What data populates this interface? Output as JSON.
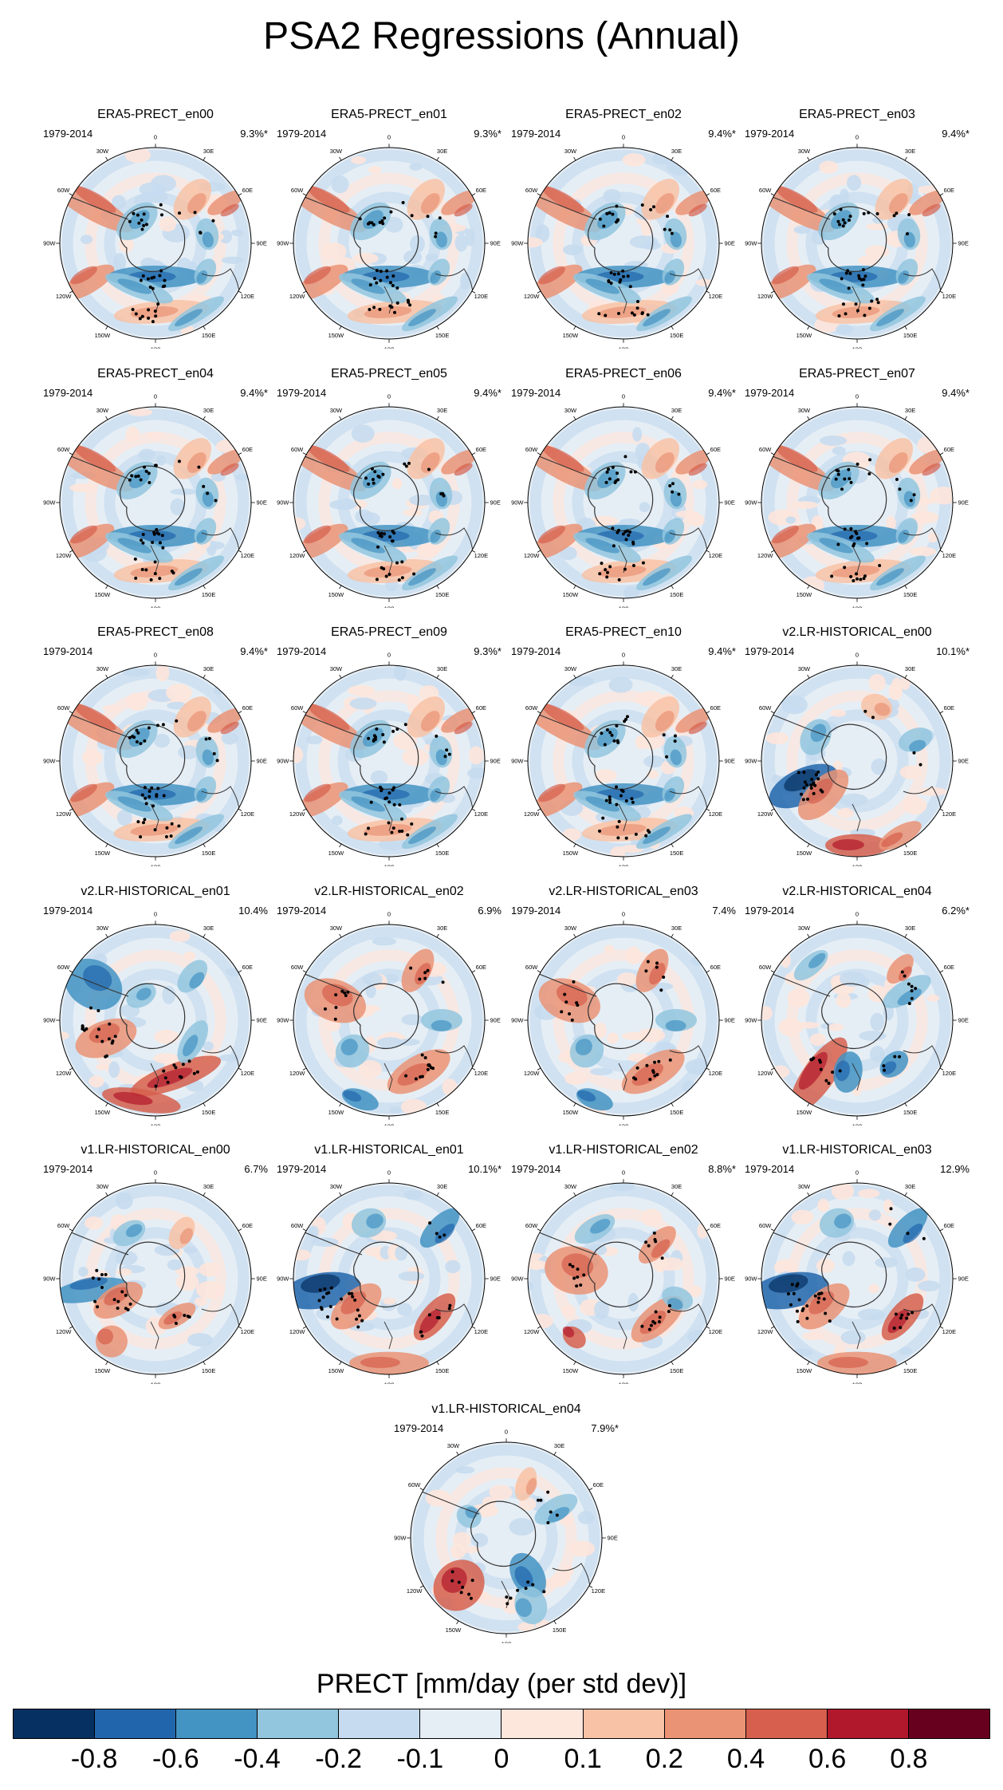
{
  "title": "PSA2 Regressions (Annual)",
  "period": "1979-2014",
  "lon_labels": [
    "0",
    "30E",
    "60E",
    "90E",
    "120E",
    "150E",
    "180",
    "150W",
    "120W",
    "90W",
    "60W",
    "30W"
  ],
  "panels": [
    {
      "name": "ERA5-PRECT_en00",
      "pct": "9.3%*",
      "pattern": "era5"
    },
    {
      "name": "ERA5-PRECT_en01",
      "pct": "9.3%*",
      "pattern": "era5"
    },
    {
      "name": "ERA5-PRECT_en02",
      "pct": "9.4%*",
      "pattern": "era5"
    },
    {
      "name": "ERA5-PRECT_en03",
      "pct": "9.4%*",
      "pattern": "era5"
    },
    {
      "name": "ERA5-PRECT_en04",
      "pct": "9.4%*",
      "pattern": "era5"
    },
    {
      "name": "ERA5-PRECT_en05",
      "pct": "9.4%*",
      "pattern": "era5"
    },
    {
      "name": "ERA5-PRECT_en06",
      "pct": "9.4%*",
      "pattern": "era5"
    },
    {
      "name": "ERA5-PRECT_en07",
      "pct": "9.4%*",
      "pattern": "era5"
    },
    {
      "name": "ERA5-PRECT_en08",
      "pct": "9.4%*",
      "pattern": "era5"
    },
    {
      "name": "ERA5-PRECT_en09",
      "pct": "9.3%*",
      "pattern": "era5"
    },
    {
      "name": "ERA5-PRECT_en10",
      "pct": "9.4%*",
      "pattern": "era5"
    },
    {
      "name": "v2.LR-HISTORICAL_en00",
      "pct": "10.1%*",
      "pattern": "v2a"
    },
    {
      "name": "v2.LR-HISTORICAL_en01",
      "pct": "10.4%",
      "pattern": "v2b"
    },
    {
      "name": "v2.LR-HISTORICAL_en02",
      "pct": "6.9%",
      "pattern": "v2c"
    },
    {
      "name": "v2.LR-HISTORICAL_en03",
      "pct": "7.4%",
      "pattern": "v2c"
    },
    {
      "name": "v2.LR-HISTORICAL_en04",
      "pct": "6.2%*",
      "pattern": "v2d"
    },
    {
      "name": "v1.LR-HISTORICAL_en00",
      "pct": "6.7%",
      "pattern": "v1a"
    },
    {
      "name": "v1.LR-HISTORICAL_en01",
      "pct": "10.1%*",
      "pattern": "v1b"
    },
    {
      "name": "v1.LR-HISTORICAL_en02",
      "pct": "8.8%*",
      "pattern": "v1c"
    },
    {
      "name": "v1.LR-HISTORICAL_en03",
      "pct": "12.9%",
      "pattern": "v1b"
    },
    {
      "name": "v1.LR-HISTORICAL_en04",
      "pct": "7.9%*",
      "pattern": "v1d"
    }
  ],
  "colorbar": {
    "label": "PRECT [mm/day (per std dev)]",
    "colors": [
      "#053061",
      "#2166ac",
      "#4393c3",
      "#92c5de",
      "#c6dbef",
      "#e6eef5",
      "#fde6dc",
      "#f8c2a6",
      "#ea9375",
      "#d6604d",
      "#b2182b",
      "#67001f"
    ],
    "ticks": [
      "-0.8",
      "-0.6",
      "-0.4",
      "-0.2",
      "-0.1",
      "0",
      "0.1",
      "0.2",
      "0.4",
      "0.6",
      "0.8"
    ]
  }
}
